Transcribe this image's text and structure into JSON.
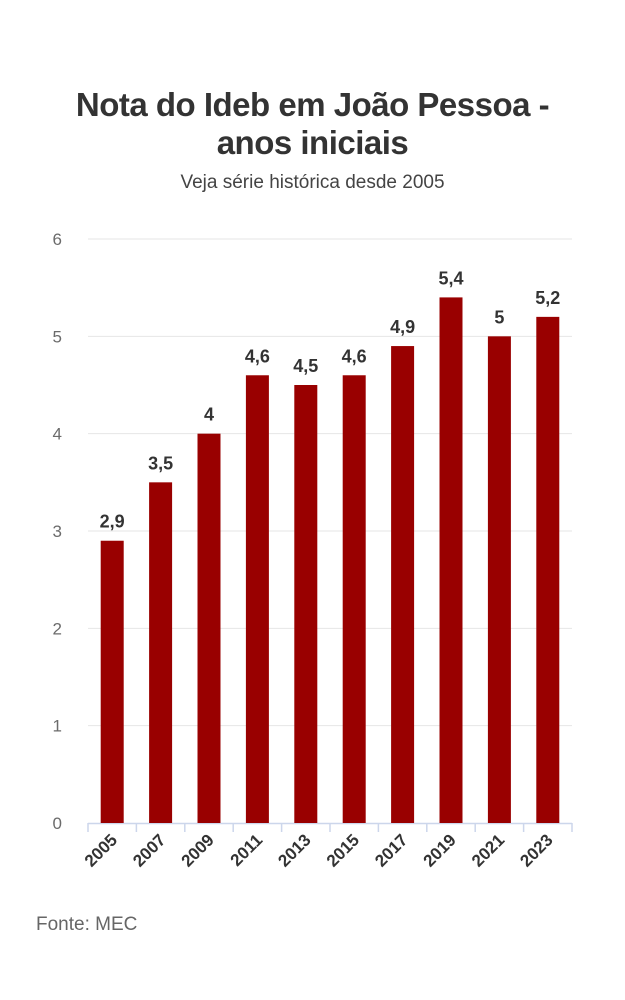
{
  "header": {
    "title_line1": "Nota do Ideb em João Pessoa -",
    "title_line2": "anos iniciais",
    "subtitle": "Veja série histórica desde 2005"
  },
  "footer": {
    "source": "Fonte: MEC"
  },
  "chart_data": {
    "type": "bar",
    "title": "Nota do Ideb em João Pessoa - anos iniciais",
    "subtitle": "Veja série histórica desde 2005",
    "categories": [
      "2005",
      "2007",
      "2009",
      "2011",
      "2013",
      "2015",
      "2017",
      "2019",
      "2021",
      "2023"
    ],
    "values": [
      2.9,
      3.5,
      4.0,
      4.6,
      4.5,
      4.6,
      4.9,
      5.4,
      5.0,
      5.2
    ],
    "data_labels": [
      "2,9",
      "3,5",
      "4",
      "4,6",
      "4,5",
      "4,6",
      "4,9",
      "5,4",
      "5",
      "5,2"
    ],
    "yticks": [
      "0",
      "1",
      "2",
      "3",
      "4",
      "5",
      "6"
    ],
    "ylim": [
      0,
      6
    ],
    "xlabel": "",
    "ylabel": "",
    "grid": true,
    "bar_color": "#990000",
    "grid_color": "#e6e6e6",
    "axis_color": "#ccd6eb"
  }
}
